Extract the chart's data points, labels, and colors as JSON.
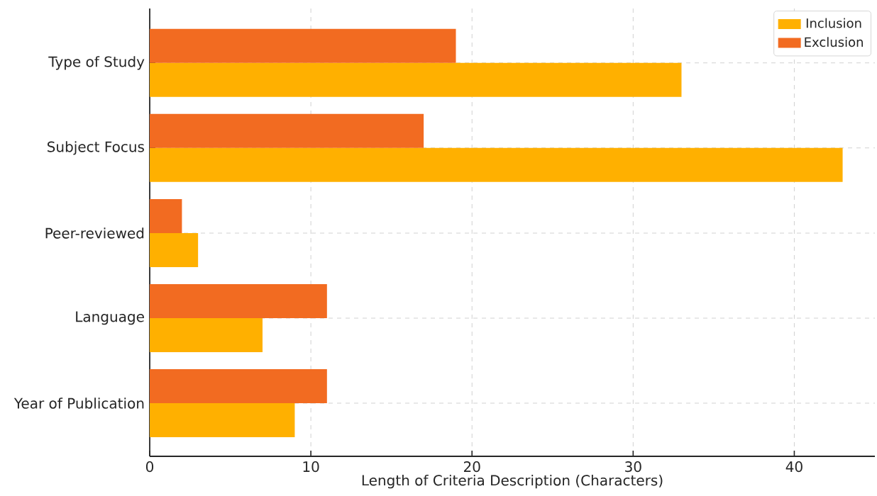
{
  "chart_data": {
    "type": "bar",
    "orientation": "horizontal",
    "xlabel": "Length of Criteria Description (Characters)",
    "categories": [
      "Type of Study",
      "Subject Focus",
      "Peer-reviewed",
      "Language",
      "Year of Publication"
    ],
    "series": [
      {
        "name": "Inclusion",
        "color": "#ffb000",
        "values": [
          33,
          43,
          3,
          7,
          9
        ]
      },
      {
        "name": "Exclusion",
        "color": "#f26b21",
        "values": [
          19,
          17,
          2,
          11,
          11
        ]
      }
    ],
    "xlim": [
      0,
      45
    ],
    "xticks": [
      0,
      10,
      20,
      30,
      40
    ],
    "grid": true,
    "legend": "top right"
  }
}
